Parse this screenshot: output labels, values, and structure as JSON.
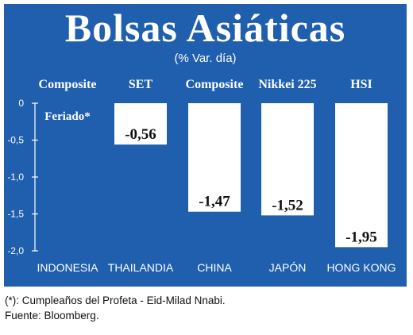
{
  "title": "Bolsas Asiáticas",
  "subtitle": "(% Var. día)",
  "colors": {
    "background": "#1f5fae",
    "bar": "#ffffff",
    "text_on_bg": "#ffffff",
    "value_text": "#111111"
  },
  "footer": {
    "note": "(*): Cumpleaños del Profeta - Eid-Milad Nnabi.",
    "source": "Fuente: Bloomberg."
  },
  "chart_data": {
    "type": "bar",
    "index_names": [
      "Composite",
      "SET",
      "Composite",
      "Nikkei 225",
      "HSI"
    ],
    "categories": [
      "INDONESIA",
      "THAILANDIA",
      "CHINA",
      "JAPÓN",
      "HONG KONG"
    ],
    "values": [
      null,
      -0.56,
      -1.47,
      -1.52,
      -1.95
    ],
    "value_labels": [
      "Feriado*",
      "-0,56",
      "-1,47",
      "-1,52",
      "-1,95"
    ],
    "yticks": [
      0,
      -0.5,
      -1.0,
      -1.5,
      -2.0
    ],
    "ytick_labels": [
      "0",
      "-0,5",
      "-1,0",
      "-1,5",
      "-2,0"
    ],
    "ylim": [
      -2.0,
      0
    ],
    "grid": false
  }
}
